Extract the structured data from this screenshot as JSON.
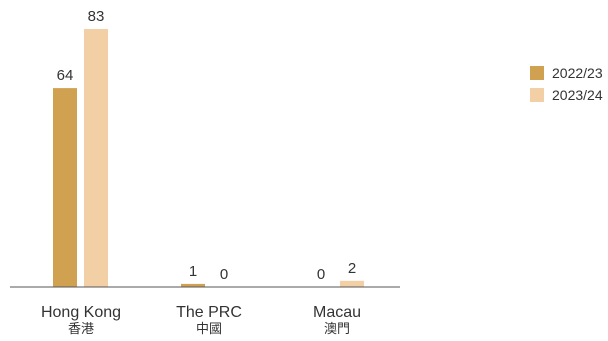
{
  "chart_data": {
    "type": "bar",
    "categories": [
      "Hong Kong",
      "The PRC",
      "Macau"
    ],
    "categories_sub": [
      "香港",
      "中國",
      "澳門"
    ],
    "series": [
      {
        "name": "2022/23",
        "values": [
          64,
          1,
          0
        ],
        "color": "#D1A152"
      },
      {
        "name": "2023/24",
        "values": [
          83,
          0,
          2
        ],
        "color": "#F2CFA5"
      }
    ],
    "ylim": [
      0,
      90
    ],
    "grid": false,
    "legend": "top-right",
    "axis_color": "#555555",
    "label_color": "#333333"
  }
}
